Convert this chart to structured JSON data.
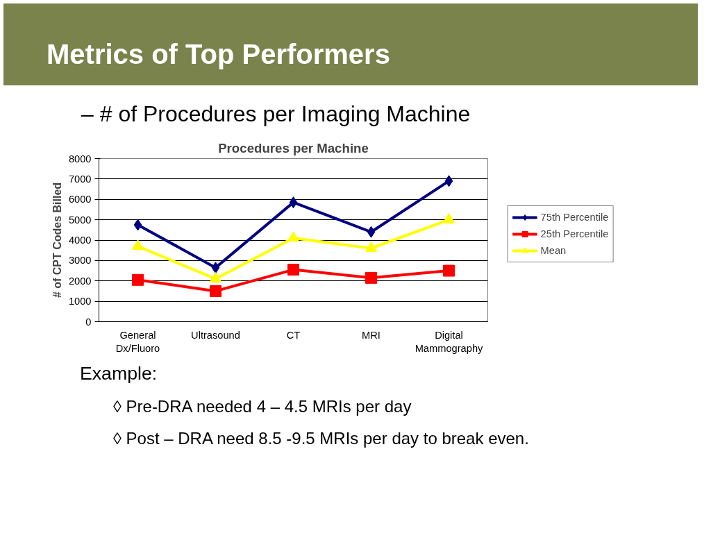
{
  "chart_data": {
    "type": "line",
    "title": "Procedures per Machine",
    "ylabel": "# of CPT Codes Billed",
    "categories": [
      "General\nDx/Fluoro",
      "Ultrasound",
      "CT",
      "MRI",
      "Digital\nMammography"
    ],
    "series": [
      {
        "name": "75th Percentile",
        "color": "#000080",
        "marker": "diamond",
        "values": [
          4750,
          2650,
          5850,
          4400,
          6900
        ]
      },
      {
        "name": "25th Percentile",
        "color": "#ff0000",
        "marker": "square",
        "values": [
          2050,
          1500,
          2550,
          2150,
          2500
        ]
      },
      {
        "name": "Mean",
        "color": "#ffff00",
        "marker": "triangle",
        "values": [
          3700,
          2100,
          4100,
          3600,
          5000
        ]
      }
    ],
    "ylim": [
      0,
      8000
    ],
    "yticks": [
      0,
      1000,
      2000,
      3000,
      4000,
      5000,
      6000,
      7000,
      8000
    ],
    "grid": "y",
    "legend": "right",
    "annotations": [
      "Metrics of Top Performers",
      "–    # of Procedures per Imaging Machine",
      "Example:",
      "◊     Pre-DRA needed 4 – 4.5 MRIs per day",
      "◊     Post – DRA need 8.5 -9.5 MRIs per day to break even."
    ]
  }
}
